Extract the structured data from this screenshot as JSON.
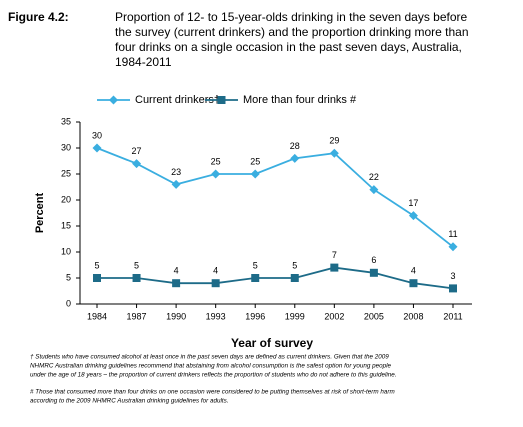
{
  "chart_data": {
    "type": "line",
    "figure_label": "Figure 4.2:",
    "title_lines": [
      "Proportion of 12- to 15-year-olds drinking in the seven days before",
      "the survey (current drinkers) and the proportion drinking more than",
      "four drinks on a single occasion in the past seven days, Australia,",
      "1984-2011"
    ],
    "x_label": "Year of survey",
    "y_label": "Percent",
    "categories": [
      "1984",
      "1987",
      "1990",
      "1993",
      "1996",
      "1999",
      "2002",
      "2005",
      "2008",
      "2011"
    ],
    "series": [
      {
        "name": "Current drinkers†",
        "color": "#3aaee0",
        "marker": "diamond",
        "values": [
          30,
          27,
          23,
          25,
          25,
          28,
          29,
          22,
          17,
          11
        ]
      },
      {
        "name": "More than four drinks #",
        "color": "#1d6b88",
        "marker": "square",
        "values": [
          5,
          5,
          4,
          4,
          5,
          5,
          7,
          6,
          4,
          3
        ]
      }
    ],
    "ylim": [
      0,
      35
    ],
    "yticks": [
      0,
      5,
      10,
      15,
      20,
      25,
      30,
      35
    ],
    "grid": false,
    "legend": "top",
    "footnotes": [
      [
        "† Students who have consumed alcohol at least once in the past seven days are defined as current drinkers. Given that the 2009",
        "NHMRC Australian drinking guidelines recommend that abstaining from alcohol consumption is the safest option for young people",
        "under the age of 18 years – the proportion of current drinkers reflects the proportion of students who do not adhere to this guideline."
      ],
      [
        "# Those that consumed more than four drinks on one occasion were considered to be putting themselves at risk of short-term harm",
        "according to the 2009 NHMRC Australian drinking guidelines for adults."
      ]
    ]
  }
}
